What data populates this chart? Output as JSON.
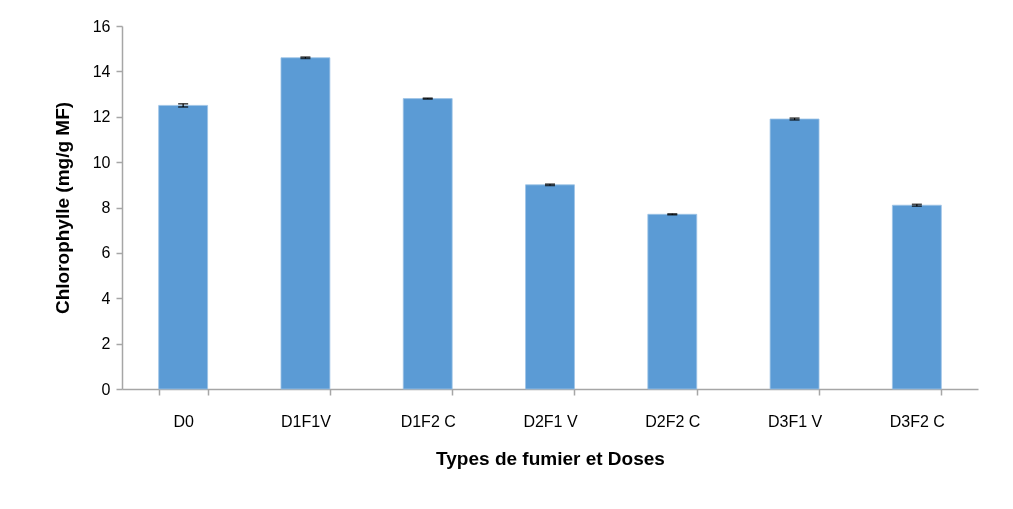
{
  "chart_data": {
    "type": "bar",
    "xlabel": "Types de fumier  et Doses",
    "ylabel": "Chlorophylle (mg/g MF)",
    "categories": [
      "D0",
      "D1F1V",
      "D1F2 C",
      "D2F1 V",
      "D2F2 C",
      "D3F1 V",
      "D3F2 C"
    ],
    "values": [
      12.5,
      14.6,
      12.8,
      9.0,
      7.7,
      11.9,
      8.1
    ],
    "errors": [
      0.07,
      0.03,
      0.02,
      0.03,
      0.02,
      0.04,
      0.04
    ],
    "color": "#5b9bd5",
    "ylim": [
      0,
      16
    ],
    "yticks": [
      0,
      2,
      4,
      6,
      8,
      10,
      12,
      14,
      16
    ]
  }
}
